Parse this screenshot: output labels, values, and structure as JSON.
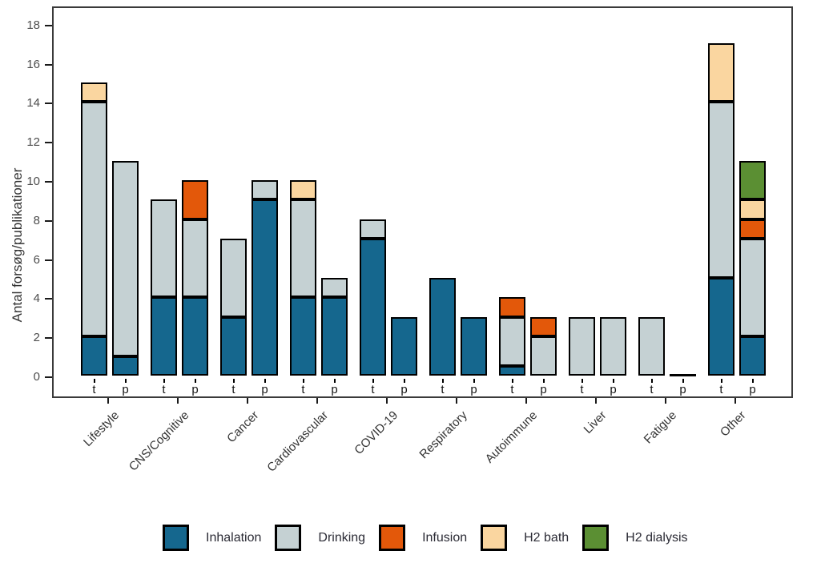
{
  "chart_data": {
    "type": "bar",
    "stacked": true,
    "title": "",
    "xlabel": "",
    "ylabel": "Antal forsøg/publikationer",
    "ylim": [
      0,
      18
    ],
    "yticks": [
      0,
      2,
      4,
      6,
      8,
      10,
      12,
      14,
      16,
      18
    ],
    "grid": false,
    "legend_position": "bottom",
    "bar_sublabels": [
      "t",
      "p"
    ],
    "series_order": [
      "Inhalation",
      "Drinking",
      "Infusion",
      "H2 bath",
      "H2 dialysis"
    ],
    "colors": {
      "Inhalation": "#15678e",
      "Drinking": "#c5d1d3",
      "Infusion": "#e3580a",
      "H2 bath": "#fad6a0",
      "H2 dialysis": "#5b8f33"
    },
    "categories": [
      "Lifestyle",
      "CNS/Cognitive",
      "Cancer",
      "Cardiovascular",
      "COVID-19",
      "Respiratory",
      "Autoimmune",
      "Liver",
      "Fatigue",
      "Other"
    ],
    "groups": [
      {
        "category": "Lifestyle",
        "t": {
          "Inhalation": 2,
          "Drinking": 12,
          "H2 bath": 1
        },
        "p": {
          "Inhalation": 1,
          "Drinking": 10
        }
      },
      {
        "category": "CNS/Cognitive",
        "t": {
          "Inhalation": 4,
          "Drinking": 5
        },
        "p": {
          "Inhalation": 4,
          "Drinking": 4,
          "Infusion": 2
        }
      },
      {
        "category": "Cancer",
        "t": {
          "Inhalation": 3,
          "Drinking": 4
        },
        "p": {
          "Inhalation": 9,
          "Drinking": 1
        }
      },
      {
        "category": "Cardiovascular",
        "t": {
          "Inhalation": 4,
          "Drinking": 5,
          "H2 bath": 1
        },
        "p": {
          "Inhalation": 4,
          "Drinking": 1
        }
      },
      {
        "category": "COVID-19",
        "t": {
          "Inhalation": 7,
          "Drinking": 1
        },
        "p": {
          "Inhalation": 3
        }
      },
      {
        "category": "Respiratory",
        "t": {
          "Inhalation": 5
        },
        "p": {
          "Inhalation": 3
        }
      },
      {
        "category": "Autoimmune",
        "t": {
          "Inhalation": 0.5,
          "Drinking": 2.5,
          "Infusion": 1
        },
        "p": {
          "Drinking": 2,
          "Infusion": 1
        }
      },
      {
        "category": "Liver",
        "t": {
          "Drinking": 3
        },
        "p": {
          "Drinking": 3
        }
      },
      {
        "category": "Fatigue",
        "t": {
          "Drinking": 3
        },
        "p": {}
      },
      {
        "category": "Other",
        "t": {
          "Inhalation": 5,
          "Drinking": 9,
          "H2 bath": 3
        },
        "p": {
          "Inhalation": 2,
          "Drinking": 5,
          "Infusion": 1,
          "H2 bath": 1,
          "H2 dialysis": 2
        }
      }
    ],
    "legend": [
      "Inhalation",
      "Drinking",
      "Infusion",
      "H2 bath",
      "H2 dialysis"
    ]
  }
}
